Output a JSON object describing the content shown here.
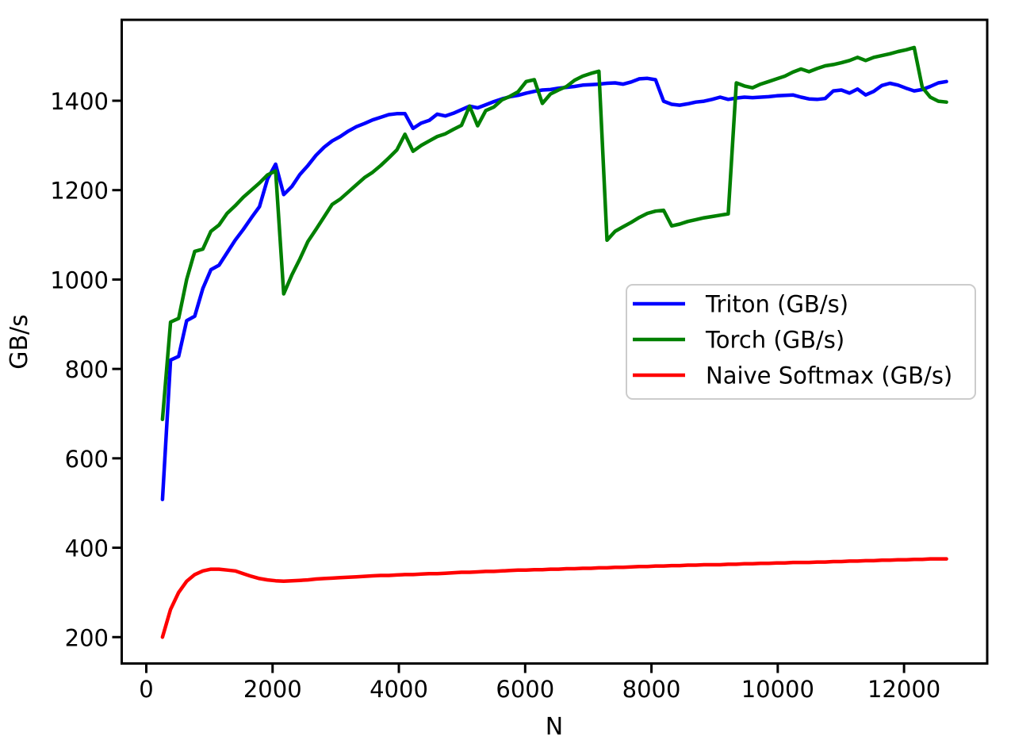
{
  "figure": {
    "background": "#ffffff",
    "axis_color": "#000000"
  },
  "chart_data": {
    "type": "line",
    "title": "",
    "xlabel": "N",
    "ylabel": "GB/s",
    "grid": false,
    "legend_position": "center right",
    "x_ticks": [
      0,
      2000,
      4000,
      6000,
      8000,
      10000,
      12000
    ],
    "y_ticks": [
      200,
      400,
      600,
      800,
      1000,
      1200,
      1400
    ],
    "xlim": [
      -389,
      13317
    ],
    "ylim": [
      141,
      1581
    ],
    "x": [
      256,
      384,
      512,
      640,
      768,
      896,
      1024,
      1152,
      1280,
      1408,
      1536,
      1664,
      1792,
      1920,
      2048,
      2176,
      2304,
      2432,
      2560,
      2688,
      2816,
      2944,
      3072,
      3200,
      3328,
      3456,
      3584,
      3712,
      3840,
      3968,
      4096,
      4224,
      4352,
      4480,
      4608,
      4736,
      4864,
      4992,
      5120,
      5248,
      5376,
      5504,
      5632,
      5760,
      5888,
      6016,
      6144,
      6272,
      6400,
      6528,
      6656,
      6784,
      6912,
      7040,
      7168,
      7296,
      7424,
      7552,
      7680,
      7808,
      7936,
      8064,
      8192,
      8320,
      8448,
      8576,
      8704,
      8832,
      8960,
      9088,
      9216,
      9344,
      9472,
      9600,
      9728,
      9856,
      9984,
      10112,
      10240,
      10368,
      10496,
      10624,
      10752,
      10880,
      11008,
      11136,
      11264,
      11392,
      11520,
      11648,
      11776,
      11904,
      12032,
      12160,
      12288,
      12416,
      12544,
      12672
    ],
    "series": [
      {
        "name": "Triton (GB/s)",
        "color": "#0000ff",
        "values": [
          508,
          820,
          828,
          908,
          918,
          980,
          1022,
          1032,
          1060,
          1088,
          1112,
          1138,
          1163,
          1225,
          1258,
          1190,
          1208,
          1235,
          1255,
          1278,
          1296,
          1310,
          1320,
          1332,
          1342,
          1349,
          1357,
          1363,
          1369,
          1371,
          1371,
          1338,
          1350,
          1356,
          1370,
          1366,
          1372,
          1380,
          1388,
          1384,
          1391,
          1398,
          1404,
          1409,
          1412,
          1417,
          1421,
          1424,
          1425,
          1428,
          1430,
          1432,
          1435,
          1436,
          1437,
          1439,
          1440,
          1437,
          1442,
          1449,
          1450,
          1447,
          1399,
          1392,
          1390,
          1393,
          1397,
          1399,
          1403,
          1408,
          1403,
          1406,
          1408,
          1407,
          1408,
          1409,
          1411,
          1412,
          1413,
          1408,
          1404,
          1403,
          1405,
          1422,
          1424,
          1417,
          1426,
          1413,
          1421,
          1434,
          1439,
          1435,
          1428,
          1422,
          1425,
          1432,
          1440,
          1443
        ]
      },
      {
        "name": "Torch (GB/s)",
        "color": "#008000",
        "values": [
          687,
          905,
          913,
          1000,
          1063,
          1068,
          1108,
          1122,
          1148,
          1165,
          1184,
          1200,
          1216,
          1234,
          1243,
          968,
          1010,
          1046,
          1085,
          1112,
          1140,
          1168,
          1180,
          1196,
          1212,
          1228,
          1240,
          1255,
          1272,
          1290,
          1325,
          1287,
          1300,
          1310,
          1320,
          1326,
          1336,
          1345,
          1388,
          1344,
          1378,
          1386,
          1402,
          1410,
          1420,
          1443,
          1447,
          1394,
          1415,
          1424,
          1432,
          1446,
          1455,
          1461,
          1466,
          1088,
          1108,
          1118,
          1128,
          1139,
          1148,
          1153,
          1155,
          1120,
          1124,
          1130,
          1134,
          1138,
          1141,
          1144,
          1147,
          1440,
          1433,
          1429,
          1437,
          1443,
          1449,
          1455,
          1464,
          1471,
          1465,
          1472,
          1478,
          1481,
          1485,
          1490,
          1497,
          1490,
          1497,
          1501,
          1505,
          1510,
          1514,
          1519,
          1430,
          1408,
          1399,
          1397
        ]
      },
      {
        "name": "Naive Softmax (GB/s)",
        "color": "#ff0000",
        "values": [
          200,
          262,
          300,
          325,
          340,
          348,
          352,
          352,
          350,
          348,
          342,
          336,
          331,
          328,
          326,
          325,
          326,
          327,
          328,
          330,
          331,
          332,
          333,
          334,
          335,
          336,
          337,
          338,
          338,
          339,
          340,
          340,
          341,
          342,
          342,
          343,
          344,
          345,
          345,
          346,
          347,
          347,
          348,
          349,
          350,
          350,
          351,
          351,
          352,
          352,
          353,
          353,
          354,
          354,
          355,
          355,
          356,
          356,
          357,
          358,
          358,
          359,
          359,
          360,
          360,
          361,
          361,
          362,
          362,
          362,
          363,
          363,
          364,
          364,
          365,
          365,
          366,
          366,
          367,
          367,
          367,
          368,
          368,
          369,
          369,
          370,
          370,
          371,
          371,
          372,
          372,
          373,
          373,
          374,
          374,
          375,
          375,
          375
        ]
      }
    ]
  }
}
